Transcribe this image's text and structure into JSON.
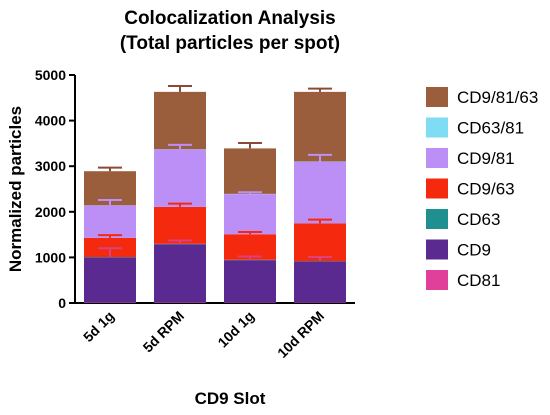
{
  "chart_data": {
    "type": "bar",
    "stacked": true,
    "title": "Colocalization Analysis",
    "subtitle": "(Total particles per spot)",
    "xlabel": "CD9 Slot",
    "ylabel": "Normalized particles",
    "ylim": [
      0,
      5000
    ],
    "yticks": [
      0,
      1000,
      2000,
      3000,
      4000,
      5000
    ],
    "grid": false,
    "legend_position": "right",
    "categories": [
      "5d 1g",
      "5d RPM",
      "10d 1g",
      "10d RPM"
    ],
    "series": [
      {
        "name": "CD81",
        "color": "#e0409a",
        "values": [
          10,
          10,
          8,
          8
        ]
      },
      {
        "name": "CD9",
        "color": "#5b2a91",
        "values": [
          990,
          1280,
          932,
          902
        ]
      },
      {
        "name": "CD63",
        "color": "#1f8f8f",
        "values": [
          8,
          8,
          8,
          8
        ]
      },
      {
        "name": "CD9/63",
        "color": "#f5290e",
        "values": [
          420,
          810,
          560,
          830
        ]
      },
      {
        "name": "CD9/81",
        "color": "#bb8ff5",
        "values": [
          710,
          1260,
          880,
          1350
        ]
      },
      {
        "name": "CD63/81",
        "color": "#7fdcf2",
        "values": [
          5,
          5,
          5,
          5
        ]
      },
      {
        "name": "CD9/81/63",
        "color": "#9b5e3c",
        "values": [
          747,
          1257,
          997,
          1527
        ]
      }
    ],
    "error_bars": [
      {
        "series": "CD9",
        "values": [
          200,
          80,
          80,
          100
        ]
      },
      {
        "series": "CD9/63",
        "values": [
          60,
          70,
          50,
          80
        ]
      },
      {
        "series": "CD9/81",
        "values": [
          120,
          100,
          40,
          150
        ]
      },
      {
        "series": "CD9/81/63",
        "values": [
          80,
          130,
          120,
          70
        ]
      }
    ],
    "legend_order": [
      "CD9/81/63",
      "CD63/81",
      "CD9/81",
      "CD9/63",
      "CD63",
      "CD9",
      "CD81"
    ]
  }
}
